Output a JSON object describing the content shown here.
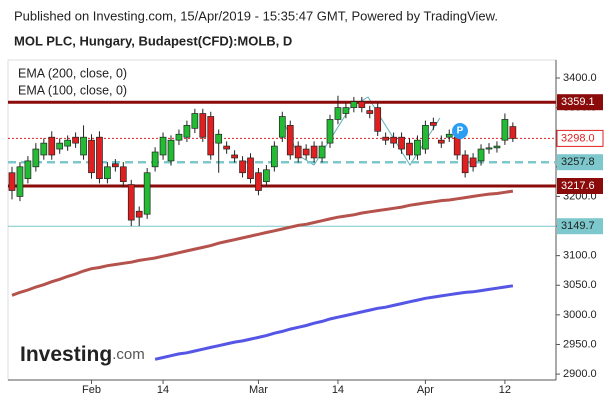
{
  "chart_data": {
    "type": "candlestick",
    "header": "Published on Investing.com, 15/Apr/2019 - 15:35:47 GMT, Powered by TradingView.",
    "title": "MOL PLC, Hungary, Budapest(CFD):MOLB, D",
    "logo": "Investing",
    "logo_suffix": ".com",
    "categories": [
      null,
      null,
      null,
      null,
      null,
      null,
      null,
      null,
      null,
      null,
      "Feb",
      null,
      null,
      null,
      null,
      null,
      null,
      null,
      null,
      "14",
      null,
      null,
      null,
      null,
      null,
      null,
      null,
      null,
      null,
      null,
      null,
      "Mar",
      null,
      null,
      null,
      null,
      null,
      null,
      null,
      null,
      null,
      "14",
      null,
      null,
      null,
      null,
      null,
      null,
      null,
      null,
      null,
      null,
      "Apr",
      null,
      null,
      null,
      null,
      null,
      null,
      null,
      null,
      null,
      "12",
      null
    ],
    "open": [
      3240,
      3200,
      3230,
      3250,
      3270,
      3300,
      3280,
      3285,
      3300,
      3270,
      3295,
      3300,
      3230,
      3255,
      3250,
      3220,
      3175,
      3170,
      3250,
      3270,
      3260,
      3295,
      3300,
      3315,
      3340,
      3335,
      3290,
      3285,
      3270,
      3260,
      3265,
      3240,
      3225,
      3250,
      3300,
      3320,
      3285,
      3280,
      3285,
      3265,
      3290,
      3330,
      3340,
      3350,
      3360,
      3345,
      3350,
      3300,
      3300,
      3300,
      3290,
      3270,
      3280,
      3325,
      3295,
      3300,
      3300,
      3270,
      3265,
      3260,
      3280,
      3282,
      3295,
      3318
    ],
    "high": [
      3250,
      3258,
      3268,
      3290,
      3298,
      3310,
      3298,
      3303,
      3308,
      3320,
      3305,
      3310,
      3258,
      3263,
      3258,
      3228,
      3183,
      3248,
      3283,
      3308,
      3303,
      3313,
      3328,
      3348,
      3348,
      3343,
      3313,
      3293,
      3278,
      3268,
      3273,
      3248,
      3253,
      3293,
      3343,
      3328,
      3293,
      3288,
      3293,
      3293,
      3338,
      3370,
      3358,
      3368,
      3368,
      3353,
      3358,
      3308,
      3308,
      3308,
      3298,
      3303,
      3328,
      3333,
      3303,
      3313,
      3308,
      3278,
      3273,
      3288,
      3290,
      3293,
      3340,
      3325
    ],
    "low": [
      3195,
      3192,
      3222,
      3242,
      3262,
      3262,
      3272,
      3277,
      3282,
      3262,
      3230,
      3222,
      3222,
      3242,
      3215,
      3150,
      3150,
      3162,
      3242,
      3262,
      3252,
      3287,
      3292,
      3307,
      3292,
      3262,
      3240,
      3272,
      3257,
      3232,
      3222,
      3202,
      3217,
      3242,
      3292,
      3262,
      3257,
      3262,
      3257,
      3257,
      3282,
      3322,
      3332,
      3342,
      3342,
      3332,
      3302,
      3287,
      3282,
      3272,
      3262,
      3262,
      3272,
      3312,
      3282,
      3292,
      3262,
      3232,
      3242,
      3252,
      3272,
      3274,
      3287,
      3292
    ],
    "close": [
      3210,
      3250,
      3260,
      3280,
      3290,
      3270,
      3290,
      3295,
      3290,
      3300,
      3240,
      3230,
      3250,
      3250,
      3225,
      3160,
      3165,
      3240,
      3275,
      3300,
      3295,
      3305,
      3320,
      3340,
      3300,
      3270,
      3305,
      3280,
      3265,
      3240,
      3230,
      3210,
      3245,
      3285,
      3335,
      3270,
      3265,
      3270,
      3265,
      3285,
      3330,
      3350,
      3350,
      3360,
      3350,
      3340,
      3310,
      3295,
      3290,
      3280,
      3270,
      3295,
      3320,
      3320,
      3290,
      3305,
      3270,
      3240,
      3250,
      3280,
      3282,
      3285,
      3330,
      3298
    ],
    "up_color": "#22bb33",
    "down_color": "#e02020",
    "series": [
      {
        "name": "EMA (200, close, 0)",
        "color": "#5555e6",
        "values": [
          null,
          null,
          null,
          null,
          null,
          null,
          null,
          null,
          null,
          null,
          null,
          null,
          null,
          null,
          null,
          null,
          null,
          null,
          2925,
          2928,
          2931,
          2934,
          2936,
          2939,
          2942,
          2945,
          2948,
          2951,
          2954,
          2956,
          2959,
          2962,
          2965,
          2969,
          2972,
          2976,
          2979,
          2982,
          2986,
          2989,
          2993,
          2996,
          2999,
          3002,
          3005,
          3008,
          3011,
          3013,
          3016,
          3019,
          3022,
          3025,
          3028,
          3030,
          3032,
          3034,
          3036,
          3038,
          3039,
          3041,
          3043,
          3045,
          3047,
          3049
        ]
      },
      {
        "name": "EMA (100, close, 0)",
        "color": "#b5524c",
        "values": [
          3033,
          3038,
          3042,
          3047,
          3051,
          3056,
          3060,
          3065,
          3069,
          3074,
          3078,
          3080,
          3083,
          3085,
          3087,
          3089,
          3092,
          3094,
          3096,
          3099,
          3102,
          3105,
          3108,
          3111,
          3114,
          3117,
          3121,
          3124,
          3127,
          3130,
          3133,
          3136,
          3139,
          3142,
          3145,
          3148,
          3151,
          3153,
          3156,
          3159,
          3162,
          3165,
          3167,
          3169,
          3172,
          3174,
          3176,
          3178,
          3180,
          3182,
          3185,
          3187,
          3189,
          3191,
          3193,
          3194,
          3196,
          3198,
          3200,
          3202,
          3204,
          3205,
          3207,
          3209
        ]
      }
    ],
    "levels": [
      {
        "value": 3359.1,
        "color": "#8b0a0a",
        "style": "solid"
      },
      {
        "value": 3298.0,
        "label": "3298.0",
        "color": "#e02020",
        "style": "dotted"
      },
      {
        "value": 3257.8,
        "color": "#7cc8cc",
        "style": "dashed"
      },
      {
        "value": 3217.6,
        "color": "#8b0a0a",
        "style": "solid"
      },
      {
        "value": 3149.7,
        "color": "#7cc8cc",
        "style": "thin"
      }
    ],
    "ylim": [
      2890,
      3427
    ],
    "yticks": [
      {
        "value": 2900,
        "label": "2900.0"
      },
      {
        "value": 2950,
        "label": "2950.0"
      },
      {
        "value": 3000,
        "label": "3000.0"
      },
      {
        "value": 3050,
        "label": "3050.0"
      },
      {
        "value": 3100,
        "label": "3100.0"
      },
      {
        "value": 3150,
        "label": "3150.0"
      },
      {
        "value": 3200,
        "label": "3200.0"
      },
      {
        "value": 3250,
        "label": "3250.0"
      },
      {
        "value": 3300,
        "label": "3300.0"
      },
      {
        "value": 3350,
        "label": "3350.0"
      },
      {
        "value": 3400,
        "label": "3400.0"
      }
    ]
  }
}
